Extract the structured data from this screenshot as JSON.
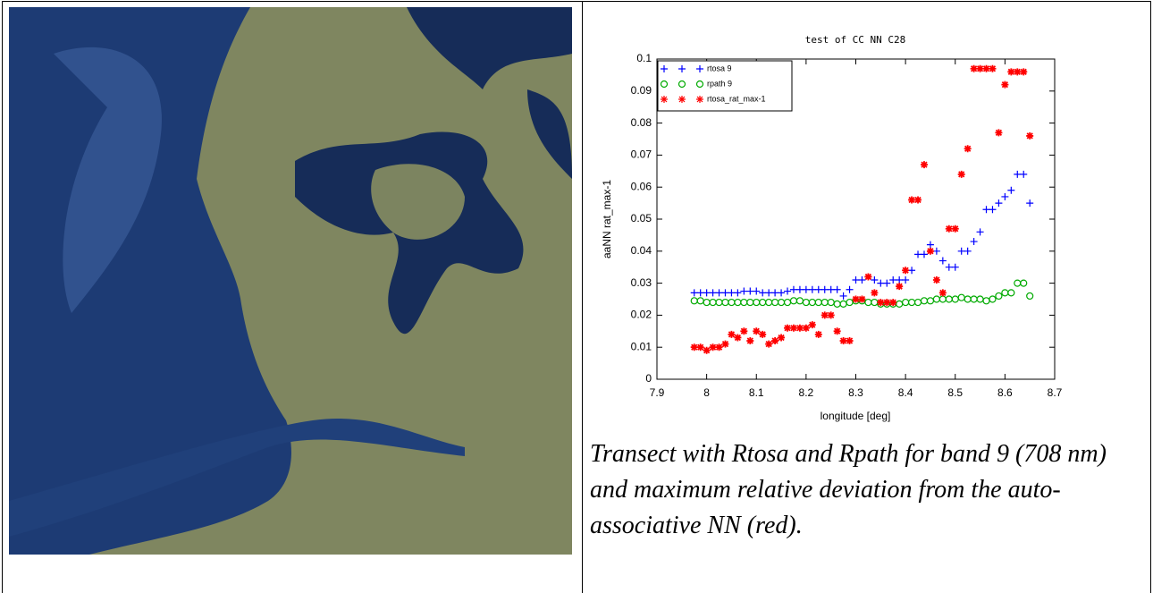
{
  "chart_data": {
    "type": "scatter",
    "title": "test of CC NN C28",
    "x_label": "longitude [deg]",
    "y_label": "aaNN rat_max-1",
    "x": [
      7.975,
      7.9875,
      8.0,
      8.0125,
      8.025,
      8.0375,
      8.05,
      8.0625,
      8.075,
      8.0875,
      8.1,
      8.1125,
      8.125,
      8.1375,
      8.15,
      8.1625,
      8.175,
      8.1875,
      8.2,
      8.2125,
      8.225,
      8.2375,
      8.25,
      8.2625,
      8.275,
      8.2875,
      8.3,
      8.3125,
      8.325,
      8.3375,
      8.35,
      8.3625,
      8.375,
      8.3875,
      8.4,
      8.4125,
      8.425,
      8.4375,
      8.45,
      8.4625,
      8.475,
      8.4875,
      8.5,
      8.5125,
      8.525,
      8.5375,
      8.55,
      8.5625,
      8.575,
      8.5875,
      8.6,
      8.6125,
      8.625,
      8.6375,
      8.65
    ],
    "series": [
      {
        "name": "rtosa 9",
        "color": "#0000ff",
        "marker": "plus",
        "values": [
          0.027,
          0.027,
          0.027,
          0.027,
          0.027,
          0.027,
          0.027,
          0.027,
          0.0275,
          0.0275,
          0.0275,
          0.027,
          0.027,
          0.027,
          0.027,
          0.0275,
          0.028,
          0.028,
          0.028,
          0.028,
          0.028,
          0.028,
          0.028,
          0.028,
          0.026,
          0.028,
          0.031,
          0.031,
          0.032,
          0.031,
          0.03,
          0.03,
          0.031,
          0.031,
          0.031,
          0.034,
          0.039,
          0.039,
          0.042,
          0.04,
          0.037,
          0.035,
          0.035,
          0.04,
          0.04,
          0.043,
          0.046,
          0.053,
          0.053,
          0.055,
          0.057,
          0.059,
          0.064,
          0.064,
          0.055
        ]
      },
      {
        "name": "rpath 9",
        "color": "#00aa00",
        "marker": "circle",
        "values": [
          0.0245,
          0.0245,
          0.024,
          0.024,
          0.024,
          0.024,
          0.024,
          0.024,
          0.024,
          0.024,
          0.024,
          0.024,
          0.024,
          0.024,
          0.024,
          0.024,
          0.0245,
          0.0245,
          0.024,
          0.024,
          0.024,
          0.024,
          0.024,
          0.0235,
          0.0235,
          0.024,
          0.0245,
          0.0245,
          0.024,
          0.024,
          0.0235,
          0.0235,
          0.0235,
          0.0235,
          0.024,
          0.024,
          0.024,
          0.0245,
          0.0245,
          0.025,
          0.025,
          0.025,
          0.025,
          0.0255,
          0.025,
          0.025,
          0.025,
          0.0245,
          0.025,
          0.026,
          0.027,
          0.027,
          0.03,
          0.03,
          0.026
        ]
      },
      {
        "name": "rtosa_rat_max-1",
        "color": "#ff0000",
        "marker": "star",
        "values": [
          0.01,
          0.01,
          0.009,
          0.01,
          0.01,
          0.011,
          0.014,
          0.013,
          0.015,
          0.012,
          0.015,
          0.014,
          0.011,
          0.012,
          0.013,
          0.016,
          0.016,
          0.016,
          0.016,
          0.017,
          0.014,
          0.02,
          0.02,
          0.015,
          0.012,
          0.012,
          0.025,
          0.025,
          0.032,
          0.027,
          0.024,
          0.024,
          0.024,
          0.029,
          0.034,
          0.056,
          0.056,
          0.067,
          0.04,
          0.031,
          0.027,
          0.047,
          0.047,
          0.064,
          0.072,
          0.097,
          0.097,
          0.097,
          0.097,
          0.077,
          0.092,
          0.096,
          0.096,
          0.096,
          0.076
        ]
      }
    ],
    "xlim": [
      7.9,
      8.7
    ],
    "xticks": [
      7.9,
      8,
      8.1,
      8.2,
      8.3,
      8.4,
      8.5,
      8.6,
      8.7
    ],
    "ylim": [
      0,
      0.1
    ],
    "yticks": [
      0,
      0.01,
      0.02,
      0.03,
      0.04,
      0.05,
      0.06,
      0.07,
      0.08,
      0.09,
      0.1
    ],
    "legend": "upper-left"
  },
  "caption": "Transect with Rtosa and Rpath for band 9 (708 nm) and maximum relative deviation from the auto-associative NN (red)."
}
